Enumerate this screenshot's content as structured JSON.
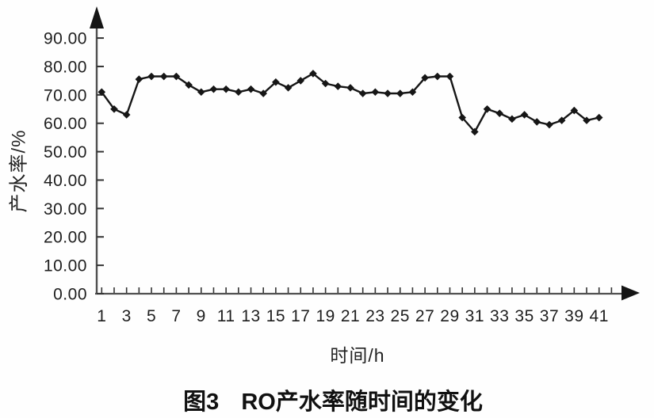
{
  "figure": {
    "caption_label": "图3",
    "caption_title": "RO产水率随时间的变化"
  },
  "chart_data": {
    "type": "line",
    "title": "RO产水率随时间的变化",
    "figure_label": "图3",
    "xlabel": "时间/h",
    "ylabel": "产水率/%",
    "x": [
      1,
      2,
      3,
      4,
      5,
      6,
      7,
      8,
      9,
      10,
      11,
      12,
      13,
      14,
      15,
      16,
      17,
      18,
      19,
      20,
      21,
      22,
      23,
      24,
      25,
      26,
      27,
      28,
      29,
      30,
      31,
      32,
      33,
      34,
      35,
      36,
      37,
      38,
      39,
      40,
      41
    ],
    "y": [
      71,
      65,
      63,
      75.5,
      76.5,
      76.5,
      76.5,
      73.5,
      71,
      72,
      72,
      71,
      72,
      70.5,
      74.5,
      72.5,
      75,
      77.5,
      74,
      73,
      72.5,
      70.5,
      71,
      70.5,
      70.5,
      71,
      76,
      76.5,
      76.5,
      62,
      57,
      65,
      63.5,
      61.5,
      63,
      60.5,
      59.5,
      61,
      64.5,
      61,
      62
    ],
    "x_tick_labels": [
      "1",
      "3",
      "5",
      "7",
      "9",
      "11",
      "13",
      "15",
      "17",
      "19",
      "21",
      "23",
      "25",
      "27",
      "29",
      "31",
      "33",
      "35",
      "37",
      "39",
      "41"
    ],
    "x_ticks_every_hour": true,
    "y_tick_values": [
      0,
      10,
      20,
      30,
      40,
      50,
      60,
      70,
      80,
      90
    ],
    "y_tick_labels": [
      "0.00",
      "10.00",
      "20.00",
      "30.00",
      "40.00",
      "50.00",
      "60.00",
      "70.00",
      "80.00",
      "90.00"
    ],
    "xlim": [
      0,
      43
    ],
    "ylim": [
      0,
      97
    ],
    "grid": false,
    "legend": "none",
    "marker": "diamond",
    "colors": {
      "ink": "#161616",
      "axis": "#4f4f4f",
      "tick": "#333333"
    }
  }
}
